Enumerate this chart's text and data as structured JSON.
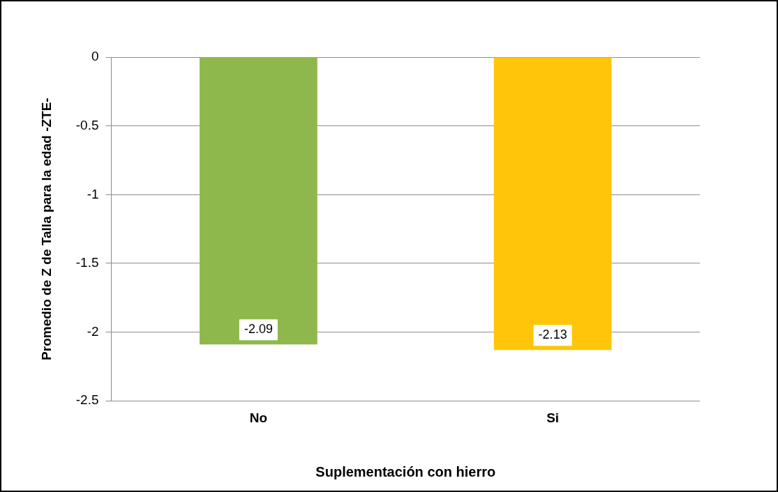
{
  "chart_data": {
    "type": "bar",
    "xlabel": "Suplementación con hierro",
    "ylabel": "Promedio de Z de Talla para la edad -ZTE-",
    "categories": [
      "No",
      "Si"
    ],
    "values": [
      -2.09,
      -2.13
    ],
    "colors": [
      "#8fb84c",
      "#ffc508"
    ],
    "ylim": [
      -2.5,
      0
    ],
    "yticks": [
      -2.5,
      -2,
      -1.5,
      -1,
      -0.5,
      0
    ],
    "grid": "y",
    "data_labels": true,
    "legend": false
  }
}
